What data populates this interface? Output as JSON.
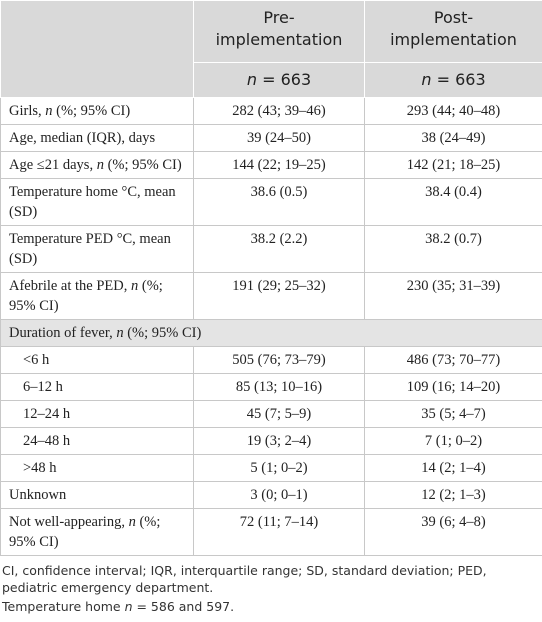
{
  "table": {
    "header": {
      "columns": [
        "Pre-implementation",
        "Post-implementation"
      ],
      "n": [
        "n = 663",
        "n = 663"
      ]
    },
    "rows": [
      [
        "Girls, n (%; 95% CI)",
        "282 (43; 39–46)",
        "293 (44; 40–48)"
      ],
      [
        "Age, median (IQR), days",
        "39 (24–50)",
        "38 (24–49)"
      ],
      [
        "Age ≤21 days, n (%; 95% CI)",
        "144 (22; 19–25)",
        "142 (21; 18–25)"
      ],
      [
        "Temperature home °C, mean (SD)",
        "38.6 (0.5)",
        "38.4 (0.4)"
      ],
      [
        "Temperature PED °C, mean (SD)",
        "38.2 (2.2)",
        "38.2 (0.7)"
      ],
      [
        "Afebrile at the PED, n (%; 95% CI)",
        "191 (29; 25–32)",
        "230 (35; 31–39)"
      ]
    ],
    "duration": {
      "title": "Duration of fever, n (%; 95% CI)",
      "rows": [
        [
          "<6 h",
          "505 (76; 73–79)",
          "486 (73; 70–77)"
        ],
        [
          "6–12 h",
          "85 (13; 10–16)",
          "109 (16; 14–20)"
        ],
        [
          "12–24 h",
          "45 (7; 5–9)",
          "35 (5; 4–7)"
        ],
        [
          "24–48 h",
          "19 (3; 2–4)",
          "7 (1; 0–2)"
        ],
        [
          ">48 h",
          "5 (1; 0–2)",
          "14 (2; 1–4)"
        ]
      ]
    },
    "rows_after": [
      [
        "Unknown",
        "3 (0; 0–1)",
        "12 (2; 1–3)"
      ],
      [
        "Not well-appearing, n (%; 95% CI)",
        "72 (11; 7–14)",
        "39 (6; 4–8)"
      ]
    ],
    "footnotes": [
      "CI, confidence interval; IQR, interquartile range; SD, standard deviation; PED, pediatric emergency department.",
      "Temperature home n = 586 and 597."
    ]
  }
}
